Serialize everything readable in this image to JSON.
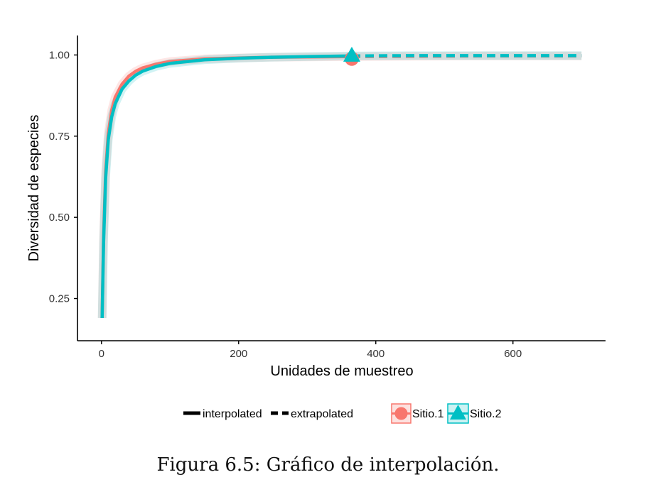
{
  "chart_data": {
    "type": "line",
    "xlabel": "Unidades de muestreo",
    "ylabel": "Diversidad de especies",
    "xlim": [
      -35,
      735
    ],
    "ylim": [
      0.12,
      1.06
    ],
    "xticks": [
      0,
      200,
      400,
      600
    ],
    "yticks": [
      0.25,
      0.5,
      0.75,
      1.0
    ],
    "x_tick_labels": [
      "0",
      "200",
      "400",
      "600"
    ],
    "y_tick_labels": [
      "0.25",
      "0.50",
      "0.75",
      "1.00"
    ],
    "grid": false,
    "legend_position": "bottom",
    "method_legend": [
      "interpolated",
      "extrapolated"
    ],
    "series": [
      {
        "name": "Sitio.1",
        "color": "#f8766d",
        "marker": "circle",
        "reference_point": [
          365,
          0.995
        ],
        "interpolated": {
          "x": [
            1,
            3,
            6,
            10,
            15,
            20,
            30,
            40,
            50,
            60,
            80,
            100,
            150,
            200,
            250,
            300,
            365
          ],
          "y": [
            0.19,
            0.44,
            0.64,
            0.76,
            0.83,
            0.87,
            0.91,
            0.935,
            0.95,
            0.96,
            0.972,
            0.98,
            0.988,
            0.991,
            0.993,
            0.994,
            0.995
          ]
        },
        "extrapolated": {
          "x": [
            365,
            450,
            550,
            650,
            700
          ],
          "y": [
            0.995,
            0.996,
            0.997,
            0.997,
            0.997
          ]
        }
      },
      {
        "name": "Sitio.2",
        "color": "#00bfc4",
        "marker": "triangle",
        "reference_point": [
          365,
          0.997
        ],
        "interpolated": {
          "x": [
            1,
            3,
            6,
            10,
            15,
            20,
            30,
            40,
            50,
            60,
            80,
            100,
            150,
            200,
            250,
            300,
            365
          ],
          "y": [
            0.19,
            0.42,
            0.62,
            0.74,
            0.81,
            0.85,
            0.895,
            0.92,
            0.938,
            0.95,
            0.965,
            0.974,
            0.985,
            0.99,
            0.993,
            0.995,
            0.997
          ]
        },
        "extrapolated": {
          "x": [
            365,
            450,
            550,
            650,
            700
          ],
          "y": [
            0.997,
            0.998,
            0.998,
            0.998,
            0.998
          ]
        }
      }
    ]
  },
  "caption": "Figura 6.5: Gráfico de interpolación."
}
